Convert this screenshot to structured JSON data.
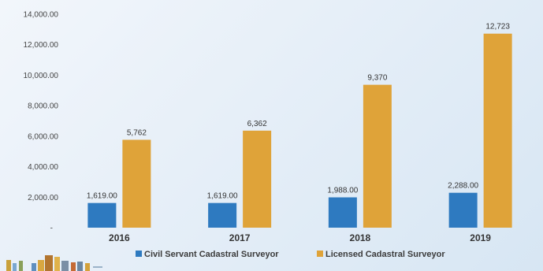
{
  "chart_data": {
    "type": "bar",
    "categories": [
      "2016",
      "2017",
      "2018",
      "2019"
    ],
    "series": [
      {
        "name": "Civil Servant Cadastral Surveyor",
        "color": "#2e7ac0",
        "values": [
          1619,
          1619,
          1988,
          2288
        ],
        "labels": [
          "1,619.00",
          "1,619.00",
          "1,988.00",
          "2,288.00"
        ]
      },
      {
        "name": "Licensed Cadastral Surveyor",
        "color": "#dfa339",
        "values": [
          5762,
          6362,
          9370,
          12723
        ],
        "labels": [
          "5,762",
          "6,362",
          "9,370",
          "12,723"
        ]
      }
    ],
    "ylim": [
      0,
      14000
    ],
    "yticks": [
      {
        "value": 0,
        "label": "-"
      },
      {
        "value": 2000,
        "label": "2,000.00"
      },
      {
        "value": 4000,
        "label": "4,000.00"
      },
      {
        "value": 6000,
        "label": "6,000.00"
      },
      {
        "value": 8000,
        "label": "8,000.00"
      },
      {
        "value": 10000,
        "label": "10,000.00"
      },
      {
        "value": 12000,
        "label": "12,000.00"
      },
      {
        "value": 14000,
        "label": "14,000.00"
      }
    ],
    "grid": false,
    "legend_position": "bottom"
  },
  "decor": {
    "city_icon": "city-skyline-icon"
  }
}
